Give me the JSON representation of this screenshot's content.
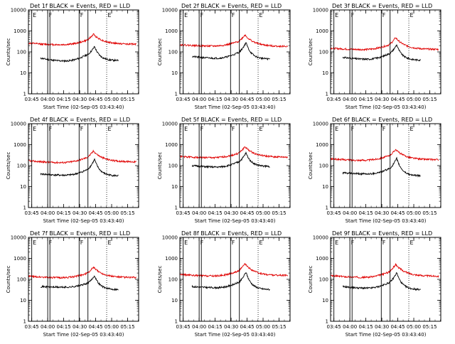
{
  "figure": {
    "bg": "#ffffff",
    "axis_color": "#000000",
    "series_colors": {
      "events": "#000000",
      "lld": "#e00000"
    }
  },
  "chart_data": [
    {
      "type": "line",
      "title": "Det 1f BLACK = Events, RED = LLD",
      "xlabel": "Start Time (02-Sep-05 03:43:40)",
      "ylabel": "Counts/sec",
      "xlim": [
        0,
        100
      ],
      "ylim_log10": [
        0,
        4
      ],
      "yticks": [
        1,
        10,
        100,
        1000,
        10000
      ],
      "ytick_labels": [
        "1",
        "10",
        "100",
        "1000",
        "10000"
      ],
      "xticks": [
        3,
        17.5,
        32,
        46.5,
        61,
        75.5,
        90
      ],
      "xtick_labels": [
        "03:45",
        "04:00",
        "04:15",
        "04:30",
        "04:45",
        "05:00",
        "05:15"
      ],
      "markers": [
        {
          "label": "E",
          "x": 3,
          "style": "solid"
        },
        {
          "label": "F",
          "x": 17.5,
          "style": "solid"
        },
        {
          "label": "",
          "x": 19.5,
          "style": "solid"
        },
        {
          "label": "F",
          "x": 46,
          "style": "solid"
        },
        {
          "label": "",
          "x": 54,
          "style": "solid"
        },
        {
          "label": "E",
          "x": 71,
          "style": "dotted"
        }
      ],
      "series": [
        {
          "name": "Events",
          "color": "#000000",
          "x_start": 11,
          "x_end": 82,
          "base": 50,
          "dip_x": 33,
          "dip": 37,
          "peak_x": 60,
          "peak": 180,
          "end": 38,
          "seed": 11
        },
        {
          "name": "LLD",
          "color": "#e00000",
          "x_start": 0,
          "x_end": 98,
          "base": 260,
          "dip_x": 30,
          "dip": 220,
          "peak_x": 59,
          "peak": 700,
          "end": 230,
          "seed": 12
        }
      ]
    },
    {
      "type": "line",
      "title": "Det 2f BLACK = Events, RED = LLD",
      "xlabel": "Start Time (02-Sep-05 03:43:40)",
      "ylabel": "Counts/sec",
      "xlim": [
        0,
        100
      ],
      "ylim_log10": [
        0,
        4
      ],
      "yticks": [
        1,
        10,
        100,
        1000,
        10000
      ],
      "ytick_labels": [
        "1",
        "10",
        "100",
        "1000",
        "10000"
      ],
      "xticks": [
        3,
        17.5,
        32,
        46.5,
        61,
        75.5,
        90
      ],
      "xtick_labels": [
        "03:45",
        "04:00",
        "04:15",
        "04:30",
        "04:45",
        "05:00",
        "05:15"
      ],
      "markers": [
        {
          "label": "E",
          "x": 3,
          "style": "solid"
        },
        {
          "label": "F",
          "x": 17.5,
          "style": "solid"
        },
        {
          "label": "",
          "x": 19.5,
          "style": "solid"
        },
        {
          "label": "F",
          "x": 46,
          "style": "solid"
        },
        {
          "label": "",
          "x": 54,
          "style": "solid"
        },
        {
          "label": "E",
          "x": 71,
          "style": "dotted"
        }
      ],
      "series": [
        {
          "name": "Events",
          "color": "#000000",
          "x_start": 11,
          "x_end": 82,
          "base": 60,
          "dip_x": 33,
          "dip": 50,
          "peak_x": 60,
          "peak": 280,
          "end": 45,
          "seed": 21
        },
        {
          "name": "LLD",
          "color": "#e00000",
          "x_start": 0,
          "x_end": 98,
          "base": 220,
          "dip_x": 30,
          "dip": 190,
          "peak_x": 59,
          "peak": 650,
          "end": 180,
          "seed": 22
        }
      ]
    },
    {
      "type": "line",
      "title": "Det 3f BLACK = Events, RED = LLD",
      "xlabel": "Start Time (02-Sep-05 03:43:40)",
      "ylabel": "Counts/sec",
      "xlim": [
        0,
        100
      ],
      "ylim_log10": [
        0,
        4
      ],
      "yticks": [
        1,
        10,
        100,
        1000,
        10000
      ],
      "ytick_labels": [
        "1",
        "10",
        "100",
        "1000",
        "10000"
      ],
      "xticks": [
        3,
        17.5,
        32,
        46.5,
        61,
        75.5,
        90
      ],
      "xtick_labels": [
        "03:45",
        "04:00",
        "04:15",
        "04:30",
        "04:45",
        "05:00",
        "05:15"
      ],
      "markers": [
        {
          "label": "E",
          "x": 3,
          "style": "solid"
        },
        {
          "label": "F",
          "x": 17.5,
          "style": "solid"
        },
        {
          "label": "",
          "x": 19.5,
          "style": "solid"
        },
        {
          "label": "F",
          "x": 46,
          "style": "solid"
        },
        {
          "label": "",
          "x": 54,
          "style": "solid"
        },
        {
          "label": "E",
          "x": 71,
          "style": "dotted"
        }
      ],
      "series": [
        {
          "name": "Events",
          "color": "#000000",
          "x_start": 11,
          "x_end": 82,
          "base": 55,
          "dip_x": 33,
          "dip": 45,
          "peak_x": 60,
          "peak": 220,
          "end": 40,
          "seed": 31
        },
        {
          "name": "LLD",
          "color": "#e00000",
          "x_start": 0,
          "x_end": 98,
          "base": 150,
          "dip_x": 30,
          "dip": 130,
          "peak_x": 59,
          "peak": 480,
          "end": 130,
          "seed": 32
        }
      ]
    },
    {
      "type": "line",
      "title": "Det 4f BLACK = Events, RED = LLD",
      "xlabel": "Start Time (02-Sep-05 03:43:40)",
      "ylabel": "Counts/sec",
      "xlim": [
        0,
        100
      ],
      "ylim_log10": [
        0,
        4
      ],
      "yticks": [
        1,
        10,
        100,
        1000,
        10000
      ],
      "ytick_labels": [
        "1",
        "10",
        "100",
        "1000",
        "10000"
      ],
      "xticks": [
        3,
        17.5,
        32,
        46.5,
        61,
        75.5,
        90
      ],
      "xtick_labels": [
        "03:45",
        "04:00",
        "04:15",
        "04:30",
        "04:45",
        "05:00",
        "05:15"
      ],
      "markers": [
        {
          "label": "E",
          "x": 3,
          "style": "solid"
        },
        {
          "label": "F",
          "x": 17.5,
          "style": "solid"
        },
        {
          "label": "",
          "x": 19.5,
          "style": "solid"
        },
        {
          "label": "F",
          "x": 46,
          "style": "solid"
        },
        {
          "label": "",
          "x": 54,
          "style": "solid"
        },
        {
          "label": "E",
          "x": 71,
          "style": "dotted"
        }
      ],
      "series": [
        {
          "name": "Events",
          "color": "#000000",
          "x_start": 11,
          "x_end": 82,
          "base": 40,
          "dip_x": 33,
          "dip": 35,
          "peak_x": 60,
          "peak": 200,
          "end": 32,
          "seed": 41
        },
        {
          "name": "LLD",
          "color": "#e00000",
          "x_start": 0,
          "x_end": 98,
          "base": 170,
          "dip_x": 30,
          "dip": 140,
          "peak_x": 59,
          "peak": 500,
          "end": 150,
          "seed": 42
        }
      ]
    },
    {
      "type": "line",
      "title": "Det 5f BLACK = Events, RED = LLD",
      "xlabel": "Start Time (02-Sep-05 03:43:40)",
      "ylabel": "Counts/sec",
      "xlim": [
        0,
        100
      ],
      "ylim_log10": [
        0,
        4
      ],
      "yticks": [
        1,
        10,
        100,
        1000,
        10000
      ],
      "ytick_labels": [
        "1",
        "10",
        "100",
        "1000",
        "10000"
      ],
      "xticks": [
        3,
        17.5,
        32,
        46.5,
        61,
        75.5,
        90
      ],
      "xtick_labels": [
        "03:45",
        "04:00",
        "04:15",
        "04:30",
        "04:45",
        "05:00",
        "05:15"
      ],
      "markers": [
        {
          "label": "E",
          "x": 3,
          "style": "solid"
        },
        {
          "label": "F",
          "x": 17.5,
          "style": "solid"
        },
        {
          "label": "",
          "x": 19.5,
          "style": "solid"
        },
        {
          "label": "F",
          "x": 46,
          "style": "solid"
        },
        {
          "label": "",
          "x": 54,
          "style": "solid"
        },
        {
          "label": "E",
          "x": 71,
          "style": "dotted"
        }
      ],
      "series": [
        {
          "name": "Events",
          "color": "#000000",
          "x_start": 11,
          "x_end": 82,
          "base": 100,
          "dip_x": 33,
          "dip": 85,
          "peak_x": 60,
          "peak": 400,
          "end": 90,
          "seed": 51
        },
        {
          "name": "LLD",
          "color": "#e00000",
          "x_start": 0,
          "x_end": 98,
          "base": 270,
          "dip_x": 30,
          "dip": 240,
          "peak_x": 59,
          "peak": 800,
          "end": 250,
          "seed": 52
        }
      ]
    },
    {
      "type": "line",
      "title": "Det 6f BLACK = Events, RED = LLD",
      "xlabel": "Start Time (02-Sep-05 03:43:40)",
      "ylabel": "Counts/sec",
      "xlim": [
        0,
        100
      ],
      "ylim_log10": [
        0,
        4
      ],
      "yticks": [
        1,
        10,
        100,
        1000,
        10000
      ],
      "ytick_labels": [
        "1",
        "10",
        "100",
        "1000",
        "10000"
      ],
      "xticks": [
        3,
        17.5,
        32,
        46.5,
        61,
        75.5,
        90
      ],
      "xtick_labels": [
        "03:45",
        "04:00",
        "04:15",
        "04:30",
        "04:45",
        "05:00",
        "05:15"
      ],
      "markers": [
        {
          "label": "E",
          "x": 3,
          "style": "solid"
        },
        {
          "label": "F",
          "x": 17.5,
          "style": "solid"
        },
        {
          "label": "",
          "x": 19.5,
          "style": "solid"
        },
        {
          "label": "F",
          "x": 46,
          "style": "solid"
        },
        {
          "label": "",
          "x": 54,
          "style": "solid"
        },
        {
          "label": "E",
          "x": 71,
          "style": "dotted"
        }
      ],
      "series": [
        {
          "name": "Events",
          "color": "#000000",
          "x_start": 11,
          "x_end": 82,
          "base": 45,
          "dip_x": 33,
          "dip": 40,
          "peak_x": 60,
          "peak": 220,
          "end": 32,
          "seed": 61
        },
        {
          "name": "LLD",
          "color": "#e00000",
          "x_start": 0,
          "x_end": 98,
          "base": 210,
          "dip_x": 30,
          "dip": 180,
          "peak_x": 59,
          "peak": 600,
          "end": 190,
          "seed": 62
        }
      ]
    },
    {
      "type": "line",
      "title": "Det 7f BLACK = Events, RED = LLD",
      "xlabel": "Start Time (02-Sep-05 03:43:40)",
      "ylabel": "Counts/sec",
      "xlim": [
        0,
        100
      ],
      "ylim_log10": [
        0,
        4
      ],
      "yticks": [
        1,
        10,
        100,
        1000,
        10000
      ],
      "ytick_labels": [
        "1",
        "10",
        "100",
        "1000",
        "10000"
      ],
      "xticks": [
        3,
        17.5,
        32,
        46.5,
        61,
        75.5,
        90
      ],
      "xtick_labels": [
        "03:45",
        "04:00",
        "04:15",
        "04:30",
        "04:45",
        "05:00",
        "05:15"
      ],
      "markers": [
        {
          "label": "E",
          "x": 3,
          "style": "solid"
        },
        {
          "label": "F",
          "x": 17.5,
          "style": "solid"
        },
        {
          "label": "",
          "x": 19.5,
          "style": "solid"
        },
        {
          "label": "F",
          "x": 46,
          "style": "solid"
        },
        {
          "label": "",
          "x": 54,
          "style": "solid"
        },
        {
          "label": "E",
          "x": 71,
          "style": "dotted"
        }
      ],
      "series": [
        {
          "name": "Events",
          "color": "#000000",
          "x_start": 11,
          "x_end": 82,
          "base": 45,
          "dip_x": 33,
          "dip": 42,
          "peak_x": 60,
          "peak": 150,
          "end": 32,
          "seed": 71
        },
        {
          "name": "LLD",
          "color": "#e00000",
          "x_start": 0,
          "x_end": 98,
          "base": 140,
          "dip_x": 30,
          "dip": 120,
          "peak_x": 59,
          "peak": 380,
          "end": 120,
          "seed": 72
        }
      ]
    },
    {
      "type": "line",
      "title": "Det 8f BLACK = Events, RED = LLD",
      "xlabel": "Start Time (02-Sep-05 03:43:40)",
      "ylabel": "Counts/sec",
      "xlim": [
        0,
        100
      ],
      "ylim_log10": [
        0,
        4
      ],
      "yticks": [
        1,
        10,
        100,
        1000,
        10000
      ],
      "ytick_labels": [
        "1",
        "10",
        "100",
        "1000",
        "10000"
      ],
      "xticks": [
        3,
        17.5,
        32,
        46.5,
        61,
        75.5,
        90
      ],
      "xtick_labels": [
        "03:45",
        "04:00",
        "04:15",
        "04:30",
        "04:45",
        "05:00",
        "05:15"
      ],
      "markers": [
        {
          "label": "E",
          "x": 3,
          "style": "solid"
        },
        {
          "label": "F",
          "x": 17.5,
          "style": "solid"
        },
        {
          "label": "",
          "x": 19.5,
          "style": "solid"
        },
        {
          "label": "F",
          "x": 46,
          "style": "solid"
        },
        {
          "label": "",
          "x": 54,
          "style": "solid"
        },
        {
          "label": "E",
          "x": 71,
          "style": "dotted"
        }
      ],
      "series": [
        {
          "name": "Events",
          "color": "#000000",
          "x_start": 11,
          "x_end": 82,
          "base": 45,
          "dip_x": 33,
          "dip": 40,
          "peak_x": 60,
          "peak": 220,
          "end": 32,
          "seed": 81
        },
        {
          "name": "LLD",
          "color": "#e00000",
          "x_start": 0,
          "x_end": 98,
          "base": 170,
          "dip_x": 30,
          "dip": 145,
          "peak_x": 59,
          "peak": 550,
          "end": 150,
          "seed": 82
        }
      ]
    },
    {
      "type": "line",
      "title": "Det 9f BLACK = Events, RED = LLD",
      "xlabel": "Start Time (02-Sep-05 03:43:40)",
      "ylabel": "Counts/sec",
      "xlim": [
        0,
        100
      ],
      "ylim_log10": [
        0,
        4
      ],
      "yticks": [
        1,
        10,
        100,
        1000,
        10000
      ],
      "ytick_labels": [
        "1",
        "10",
        "100",
        "1000",
        "10000"
      ],
      "xticks": [
        3,
        17.5,
        32,
        46.5,
        61,
        75.5,
        90
      ],
      "xtick_labels": [
        "03:45",
        "04:00",
        "04:15",
        "04:30",
        "04:45",
        "05:00",
        "05:15"
      ],
      "markers": [
        {
          "label": "E",
          "x": 3,
          "style": "solid"
        },
        {
          "label": "F",
          "x": 17.5,
          "style": "solid"
        },
        {
          "label": "",
          "x": 19.5,
          "style": "solid"
        },
        {
          "label": "F",
          "x": 46,
          "style": "solid"
        },
        {
          "label": "",
          "x": 54,
          "style": "solid"
        },
        {
          "label": "E",
          "x": 71,
          "style": "dotted"
        }
      ],
      "series": [
        {
          "name": "Events",
          "color": "#000000",
          "x_start": 11,
          "x_end": 82,
          "base": 45,
          "dip_x": 33,
          "dip": 38,
          "peak_x": 60,
          "peak": 210,
          "end": 32,
          "seed": 91
        },
        {
          "name": "LLD",
          "color": "#e00000",
          "x_start": 0,
          "x_end": 98,
          "base": 150,
          "dip_x": 30,
          "dip": 125,
          "peak_x": 59,
          "peak": 520,
          "end": 140,
          "seed": 92
        }
      ]
    }
  ]
}
